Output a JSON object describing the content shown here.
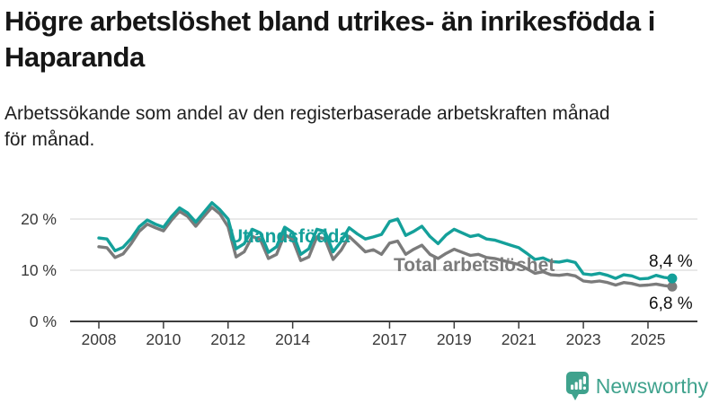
{
  "header": {
    "title": "Högre arbetslöshet bland utrikes- än inrikesfödda i Haparanda",
    "subtitle": "Arbetssökande som andel av den registerbaserade arbetskraften månad för månad."
  },
  "footer": {
    "brand": "Newsworthy",
    "brand_color": "#3fa28d",
    "logo_icon": "bar-chart-speech-bubble-icon"
  },
  "colors": {
    "foreign_born_line": "#14a09a",
    "total_line": "#7b7b7b",
    "grid": "#e2e2e2",
    "axis": "#3c3c3c",
    "value_label": "#111111"
  },
  "chart_data": {
    "type": "line",
    "title": "",
    "xlabel": "",
    "ylabel": "",
    "grid": "horizontal",
    "ylim": [
      0,
      25
    ],
    "xlim": [
      2007.1,
      2026.4
    ],
    "legend_position": "inline-labels",
    "yticks": [
      {
        "value": 0,
        "label": "0 %"
      },
      {
        "value": 10,
        "label": "10 %"
      },
      {
        "value": 20,
        "label": "20 %"
      }
    ],
    "xticks": [
      2008,
      2010,
      2012,
      2014,
      2017,
      2019,
      2021,
      2023,
      2025
    ],
    "x": [
      2008,
      2008.25,
      2008.5,
      2008.75,
      2009,
      2009.25,
      2009.5,
      2009.75,
      2010,
      2010.25,
      2010.5,
      2010.75,
      2011,
      2011.25,
      2011.5,
      2011.75,
      2012,
      2012.25,
      2012.5,
      2012.75,
      2013,
      2013.25,
      2013.5,
      2013.75,
      2014,
      2014.25,
      2014.5,
      2014.75,
      2015,
      2015.25,
      2015.5,
      2015.75,
      2016,
      2016.25,
      2016.5,
      2016.75,
      2017,
      2017.25,
      2017.5,
      2017.75,
      2018,
      2018.25,
      2018.5,
      2018.75,
      2019,
      2019.25,
      2019.5,
      2019.75,
      2020,
      2020.25,
      2020.5,
      2020.75,
      2021,
      2021.25,
      2021.5,
      2021.75,
      2022,
      2022.25,
      2022.5,
      2022.75,
      2023,
      2023.25,
      2023.5,
      2023.75,
      2024,
      2024.25,
      2024.5,
      2024.75,
      2025,
      2025.25,
      2025.5,
      2025.75
    ],
    "series": [
      {
        "name": "Total arbetslöshet",
        "color": "#7b7b7b",
        "end_value": 6.8,
        "end_label": "6,8 %",
        "values": [
          14.6,
          14.4,
          12.5,
          13.2,
          15.2,
          17.6,
          19.0,
          18.3,
          17.7,
          19.8,
          21.5,
          20.5,
          18.6,
          20.5,
          22.3,
          21.0,
          18.5,
          12.6,
          13.6,
          16.6,
          16.0,
          12.3,
          13.1,
          17.0,
          16.0,
          11.9,
          12.6,
          16.5,
          16.1,
          12.1,
          13.9,
          16.6,
          15.1,
          13.6,
          14.0,
          13.1,
          15.3,
          15.7,
          13.1,
          14.1,
          14.9,
          13.1,
          12.3,
          13.3,
          14.1,
          13.5,
          12.9,
          13.1,
          12.5,
          12.3,
          11.9,
          11.5,
          11.1,
          10.3,
          9.4,
          9.7,
          9.1,
          9.0,
          9.2,
          8.9,
          7.9,
          7.7,
          7.9,
          7.6,
          7.1,
          7.6,
          7.4,
          7.0,
          7.1,
          7.3,
          7.0,
          6.8
        ]
      },
      {
        "name": "Utlandsfödda",
        "color": "#14a09a",
        "end_value": 8.4,
        "end_label": "8,4 %",
        "values": [
          16.3,
          16.1,
          13.8,
          14.5,
          16.2,
          18.5,
          19.8,
          19.0,
          18.4,
          20.5,
          22.2,
          21.2,
          19.4,
          21.3,
          23.2,
          21.8,
          20.0,
          14.2,
          15.2,
          18.0,
          17.3,
          13.5,
          14.6,
          18.4,
          17.4,
          13.1,
          14.2,
          18.0,
          17.6,
          13.6,
          15.6,
          18.3,
          17.1,
          16.1,
          16.5,
          17.0,
          19.5,
          20.0,
          16.8,
          17.6,
          18.6,
          16.6,
          15.2,
          16.9,
          18.0,
          17.3,
          16.6,
          16.9,
          16.1,
          15.9,
          15.4,
          14.9,
          14.4,
          13.3,
          12.1,
          12.4,
          11.7,
          11.6,
          11.9,
          11.5,
          9.3,
          9.1,
          9.4,
          9.0,
          8.4,
          9.1,
          8.9,
          8.3,
          8.4,
          9.0,
          8.6,
          8.4
        ]
      }
    ]
  }
}
